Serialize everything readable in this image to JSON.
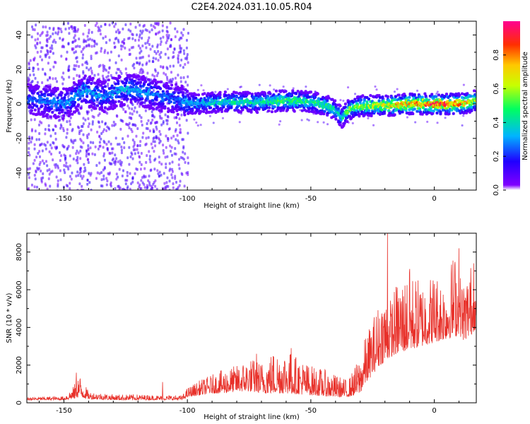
{
  "title": "C2E4.2024.031.10.05.R04",
  "colors": {
    "snr_line": "#e8312a",
    "axis": "#000000"
  },
  "chart_data": [
    {
      "type": "heatmap",
      "xlabel": "Height of straight line (km)",
      "ylabel": "Frequency (Hz)",
      "xlim": [
        -165,
        17
      ],
      "ylim": [
        -50,
        48
      ],
      "x_ticks": [
        -150,
        -100,
        -50,
        0
      ],
      "x_tick_labels": [
        "-150",
        "-100",
        "-50",
        "0"
      ],
      "y_ticks": [
        -40,
        -20,
        0,
        20,
        40
      ],
      "y_tick_labels": [
        "-40",
        "-20",
        "0",
        "20",
        "40"
      ],
      "grid": false,
      "colormap": "rainbow",
      "colorbar": {
        "label": "Normalized spectral amplitude",
        "range": [
          0,
          1
        ],
        "ticks": [
          0.0,
          0.2,
          0.4,
          0.6,
          0.8
        ],
        "tick_labels": [
          "0.0",
          "0.2",
          "0.4",
          "0.6",
          "0.8"
        ]
      },
      "ridge": {
        "x": [
          -165,
          -150,
          -142,
          -135,
          -125,
          -115,
          -105,
          -100,
          -90,
          -80,
          -70,
          -60,
          -50,
          -42,
          -38,
          -35,
          -30,
          -20,
          -10,
          0,
          10,
          17
        ],
        "freq": [
          3,
          0,
          8,
          4,
          9,
          6,
          3,
          0,
          1,
          1,
          1,
          2,
          1,
          -2,
          -8,
          -3,
          -1,
          -1,
          0,
          0,
          0,
          2
        ],
        "amplitude": [
          0.25,
          0.3,
          0.35,
          0.3,
          0.35,
          0.3,
          0.25,
          0.35,
          0.4,
          0.45,
          0.45,
          0.5,
          0.5,
          0.45,
          0.4,
          0.55,
          0.6,
          0.7,
          0.8,
          0.9,
          0.85,
          0.6
        ]
      },
      "noise_extent_x": [
        -165,
        -100
      ]
    },
    {
      "type": "line",
      "xlabel": "Height of straight line (km)",
      "ylabel": "SNR (10 * v/v)",
      "xlim": [
        -165,
        17
      ],
      "ylim": [
        0,
        9000
      ],
      "x_ticks": [
        -150,
        -100,
        -50,
        0
      ],
      "x_tick_labels": [
        "-150",
        "-100",
        "-50",
        "0"
      ],
      "y_ticks": [
        0,
        2000,
        4000,
        6000,
        8000
      ],
      "y_tick_labels": [
        "0",
        "2000",
        "4000",
        "6000",
        "8000"
      ],
      "grid": false,
      "envelope": {
        "x": [
          -165,
          -150,
          -146,
          -144,
          -140,
          -130,
          -120,
          -110,
          -102,
          -100,
          -95,
          -90,
          -85,
          -80,
          -75,
          -70,
          -65,
          -60,
          -55,
          -50,
          -45,
          -40,
          -35,
          -30,
          -28,
          -25,
          -22,
          -20,
          -18,
          -15,
          -10,
          -5,
          0,
          5,
          8,
          10,
          12,
          15,
          17
        ],
        "low": [
          150,
          150,
          200,
          300,
          200,
          150,
          150,
          150,
          150,
          300,
          400,
          500,
          500,
          600,
          600,
          500,
          500,
          500,
          450,
          400,
          350,
          300,
          300,
          500,
          1000,
          1500,
          2000,
          2200,
          2400,
          2600,
          2800,
          3000,
          3200,
          3400,
          3500,
          3600,
          3300,
          3600,
          4000
        ],
        "high": [
          300,
          350,
          900,
          1600,
          600,
          450,
          450,
          400,
          400,
          800,
          1200,
          1500,
          1800,
          2000,
          2400,
          2200,
          2800,
          2900,
          2400,
          2000,
          1800,
          1500,
          1200,
          2500,
          3500,
          4500,
          5500,
          6000,
          5500,
          6500,
          7000,
          6500,
          7000,
          6500,
          8200,
          7000,
          6500,
          7500,
          6000
        ]
      },
      "spikes": [
        {
          "x": -145,
          "y": 1600
        },
        {
          "x": -110,
          "y": 1100
        },
        {
          "x": -72,
          "y": 2600
        },
        {
          "x": -58,
          "y": 2900
        },
        {
          "x": -19,
          "y": 9000
        },
        {
          "x": -10,
          "y": 7100
        },
        {
          "x": 10,
          "y": 8200
        },
        {
          "x": 16,
          "y": 7400
        }
      ]
    }
  ]
}
